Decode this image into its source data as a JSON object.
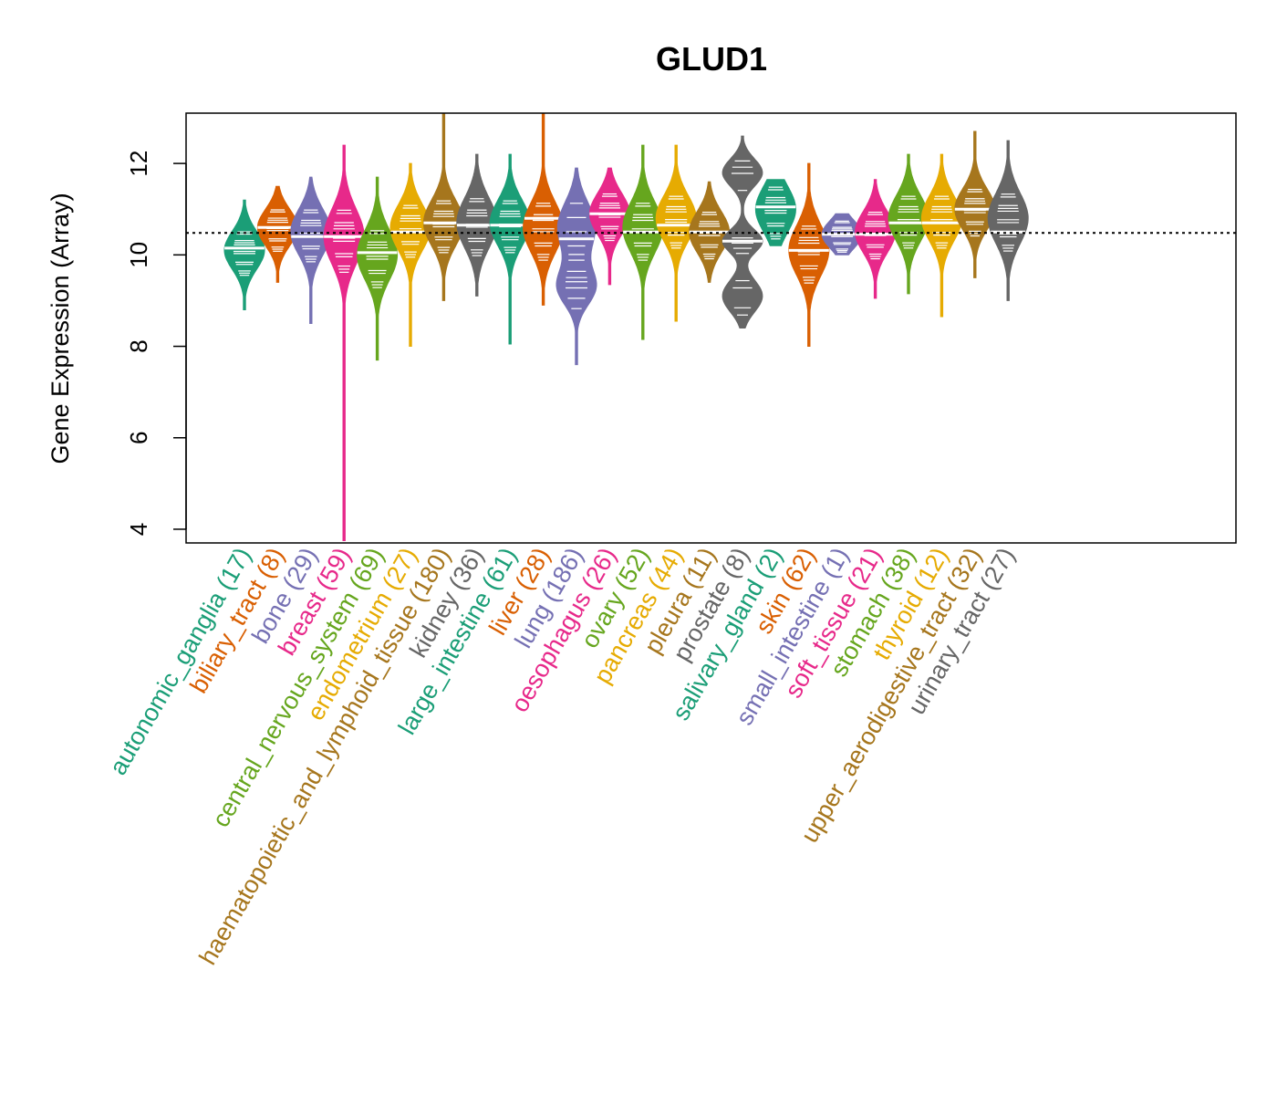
{
  "chart_data": {
    "type": "violin",
    "title": "GLUD1",
    "xlabel": "",
    "ylabel": "Gene Expression (Array)",
    "ylim": [
      3.7,
      13.1
    ],
    "yticks": [
      4,
      6,
      8,
      10,
      12
    ],
    "reference_line": 10.48,
    "categories": [
      {
        "label": "autonomic_ganglia (17)",
        "color": "#1B9E77",
        "median": 10.15,
        "min": 8.8,
        "max": 11.2,
        "modes": [
          [
            10.1,
            0.42
          ]
        ]
      },
      {
        "label": "biliary_tract (8)",
        "color": "#D95F02",
        "median": 10.6,
        "min": 9.4,
        "max": 11.5,
        "modes": [
          [
            10.6,
            0.4
          ]
        ]
      },
      {
        "label": "bone (29)",
        "color": "#7570B3",
        "median": 10.4,
        "min": 8.5,
        "max": 11.7,
        "modes": [
          [
            10.5,
            0.5
          ]
        ]
      },
      {
        "label": "breast (59)",
        "color": "#E7298A",
        "median": 10.4,
        "min": 3.75,
        "max": 12.4,
        "modes": [
          [
            10.4,
            0.6
          ]
        ]
      },
      {
        "label": "central_nervous_system (69)",
        "color": "#66A61E",
        "median": 10.05,
        "min": 7.7,
        "max": 11.7,
        "modes": [
          [
            10.0,
            0.55
          ]
        ]
      },
      {
        "label": "endometrium (27)",
        "color": "#E6AB02",
        "median": 10.5,
        "min": 8.0,
        "max": 12.0,
        "modes": [
          [
            10.6,
            0.5
          ]
        ]
      },
      {
        "label": "haematopoietic_and_lymphoid_tissue (180)",
        "color": "#A6761D",
        "median": 10.7,
        "min": 9.0,
        "max": 13.1,
        "modes": [
          [
            10.7,
            0.5
          ]
        ]
      },
      {
        "label": "kidney (36)",
        "color": "#666666",
        "median": 10.65,
        "min": 9.1,
        "max": 12.2,
        "modes": [
          [
            10.7,
            0.55
          ]
        ]
      },
      {
        "label": "large_intestine (61)",
        "color": "#1B9E77",
        "median": 10.65,
        "min": 8.05,
        "max": 12.2,
        "modes": [
          [
            10.7,
            0.5
          ]
        ]
      },
      {
        "label": "liver (28)",
        "color": "#D95F02",
        "median": 10.8,
        "min": 8.9,
        "max": 13.1,
        "modes": [
          [
            10.6,
            0.55
          ]
        ]
      },
      {
        "label": "lung (186)",
        "color": "#7570B3",
        "median": 10.35,
        "min": 7.6,
        "max": 11.9,
        "modes": [
          [
            10.6,
            0.55
          ],
          [
            9.3,
            0.4
          ]
        ]
      },
      {
        "label": "oesophagus (26)",
        "color": "#E7298A",
        "median": 10.9,
        "min": 9.35,
        "max": 11.9,
        "modes": [
          [
            10.9,
            0.45
          ]
        ]
      },
      {
        "label": "ovary (52)",
        "color": "#66A61E",
        "median": 10.5,
        "min": 8.15,
        "max": 12.4,
        "modes": [
          [
            10.6,
            0.55
          ]
        ]
      },
      {
        "label": "pancreas (44)",
        "color": "#E6AB02",
        "median": 10.65,
        "min": 8.55,
        "max": 12.4,
        "modes": [
          [
            10.8,
            0.5
          ]
        ]
      },
      {
        "label": "pleura (11)",
        "color": "#A6761D",
        "median": 10.5,
        "min": 9.4,
        "max": 11.6,
        "modes": [
          [
            10.5,
            0.45
          ]
        ]
      },
      {
        "label": "prostate (8)",
        "color": "#666666",
        "median": 10.3,
        "min": 8.4,
        "max": 12.6,
        "modes": [
          [
            11.8,
            0.3
          ],
          [
            10.3,
            0.25
          ],
          [
            9.1,
            0.35
          ]
        ]
      },
      {
        "label": "salivary_gland (2)",
        "color": "#1B9E77",
        "median": 11.05,
        "min": 10.2,
        "max": 11.65,
        "modes": [
          [
            11.0,
            0.5
          ]
        ]
      },
      {
        "label": "skin (62)",
        "color": "#D95F02",
        "median": 10.1,
        "min": 8.0,
        "max": 12.0,
        "modes": [
          [
            10.1,
            0.55
          ]
        ]
      },
      {
        "label": "small_intestine (1)",
        "color": "#7570B3",
        "median": 10.45,
        "min": 10.0,
        "max": 10.9,
        "modes": [
          [
            10.45,
            0.3
          ]
        ]
      },
      {
        "label": "soft_tissue (21)",
        "color": "#E7298A",
        "median": 10.45,
        "min": 9.05,
        "max": 11.65,
        "modes": [
          [
            10.5,
            0.45
          ]
        ]
      },
      {
        "label": "stomach (38)",
        "color": "#66A61E",
        "median": 10.7,
        "min": 9.15,
        "max": 12.2,
        "modes": [
          [
            10.8,
            0.5
          ]
        ]
      },
      {
        "label": "thyroid (12)",
        "color": "#E6AB02",
        "median": 10.7,
        "min": 8.65,
        "max": 12.2,
        "modes": [
          [
            10.8,
            0.5
          ]
        ]
      },
      {
        "label": "upper_aerodigestive_tract (32)",
        "color": "#A6761D",
        "median": 11.0,
        "min": 9.5,
        "max": 12.7,
        "modes": [
          [
            11.0,
            0.45
          ]
        ]
      },
      {
        "label": "urinary_tract (27)",
        "color": "#666666",
        "median": 10.5,
        "min": 9.0,
        "max": 12.5,
        "modes": [
          [
            10.8,
            0.55
          ]
        ]
      }
    ]
  }
}
